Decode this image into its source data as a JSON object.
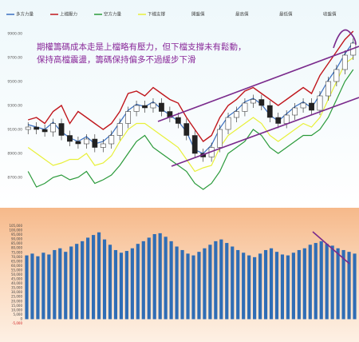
{
  "chart_data": [
    {
      "type": "candlestick",
      "annotations": [
        "期權籌碼成本走是上檔略有壓力，但下檔支撐未有鬆動，",
        "保持高檔震盪，籌碼保持偏多不過緩步下滑"
      ],
      "series": [
        {
          "name": "多方力量",
          "color": "#3a6fc0",
          "values": [
            9140,
            9120,
            9100,
            9160,
            9080,
            9030,
            9000,
            9040,
            8980,
            9000,
            9060,
            9160,
            9260,
            9310,
            9290,
            9330,
            9270,
            9220,
            9170,
            9080,
            8930,
            8900,
            8970,
            9110,
            9210,
            9260,
            9330,
            9360,
            9310,
            9220,
            9170,
            9230,
            9290,
            9330,
            9280,
            9390,
            9510,
            9610,
            9730,
            9830
          ]
        },
        {
          "name": "上檔壓力",
          "color": "#c0161c",
          "values": [
            9180,
            9200,
            9150,
            9250,
            9300,
            9150,
            9250,
            9200,
            9150,
            9100,
            9150,
            9250,
            9400,
            9420,
            9380,
            9450,
            9400,
            9350,
            9320,
            9200,
            9100,
            9000,
            9050,
            9200,
            9300,
            9350,
            9420,
            9450,
            9400,
            9350,
            9300,
            9350,
            9400,
            9450,
            9400,
            9550,
            9650,
            9750,
            9850,
            9920
          ]
        },
        {
          "name": "空方力量",
          "color": "#2a9a3a",
          "values": [
            8750,
            8620,
            8650,
            8700,
            8720,
            8680,
            8700,
            8750,
            8650,
            8680,
            8720,
            8800,
            8900,
            9000,
            9050,
            8950,
            8900,
            8850,
            8800,
            8750,
            8650,
            8600,
            8650,
            8750,
            8900,
            8950,
            9000,
            9100,
            9050,
            8950,
            8900,
            8950,
            9000,
            9050,
            9050,
            9100,
            9200,
            9350,
            9500,
            9600
          ]
        },
        {
          "name": "下檔支撐",
          "color": "#e8f03a",
          "values": [
            8950,
            8900,
            8850,
            8800,
            8820,
            8850,
            8850,
            8900,
            8800,
            8820,
            8880,
            9000,
            9100,
            9150,
            9150,
            9100,
            9050,
            9000,
            8950,
            8850,
            8750,
            8780,
            8800,
            8950,
            9050,
            9100,
            9150,
            9200,
            9150,
            9050,
            9000,
            9050,
            9100,
            9150,
            9120,
            9200,
            9350,
            9500,
            9650,
            9700
          ]
        }
      ],
      "ohlc": [
        {
          "name": "開盤價",
          "values": [
            9100,
            9120,
            9100,
            9080,
            9150,
            9050,
            9000,
            8980,
            9020,
            8950,
            8980,
            9050,
            9150,
            9250,
            9300,
            9280,
            9320,
            9250,
            9200,
            9150,
            9050,
            8900,
            8870,
            8950,
            9100,
            9200,
            9250,
            9320,
            9350,
            9300,
            9200,
            9150,
            9220,
            9280,
            9320,
            9260,
            9380,
            9500,
            9600,
            9720
          ]
        },
        {
          "name": "最高價",
          "values": [
            9160,
            9160,
            9140,
            9190,
            9190,
            9090,
            9040,
            9060,
            9060,
            9020,
            9090,
            9190,
            9290,
            9340,
            9340,
            9360,
            9360,
            9290,
            9240,
            9190,
            9090,
            8940,
            8990,
            9140,
            9240,
            9290,
            9360,
            9390,
            9390,
            9340,
            9240,
            9260,
            9320,
            9360,
            9360,
            9420,
            9540,
            9640,
            9760,
            9860
          ]
        },
        {
          "name": "最低價",
          "values": [
            9060,
            9060,
            9040,
            9040,
            9010,
            8960,
            8940,
            8940,
            8910,
            8910,
            8940,
            9010,
            9110,
            9210,
            9240,
            9240,
            9210,
            9160,
            9110,
            9010,
            8860,
            8830,
            8830,
            8910,
            9060,
            9160,
            9210,
            9280,
            9260,
            9160,
            9110,
            9110,
            9180,
            9240,
            9220,
            9220,
            9340,
            9460,
            9560,
            9680
          ]
        },
        {
          "name": "收盤價",
          "values": [
            9120,
            9100,
            9080,
            9150,
            9050,
            9000,
            8980,
            9020,
            8950,
            8980,
            9050,
            9150,
            9250,
            9300,
            9280,
            9320,
            9250,
            9200,
            9150,
            9050,
            8900,
            8870,
            8950,
            9100,
            9200,
            9250,
            9320,
            9350,
            9300,
            9200,
            9150,
            9220,
            9280,
            9320,
            9260,
            9380,
            9500,
            9600,
            9720,
            9820
          ]
        }
      ],
      "ylim": [
        8500,
        9980
      ],
      "yticks": [
        {
          "value": 9900,
          "label": "9900.00"
        },
        {
          "value": 9700,
          "label": "9700.00"
        },
        {
          "value": 9500,
          "label": "9500.00"
        },
        {
          "value": 9300,
          "label": "9300.00"
        },
        {
          "value": 9100,
          "label": "9100.00"
        },
        {
          "value": 8900,
          "label": "8900.00"
        },
        {
          "value": 8700,
          "label": "8700.00"
        }
      ]
    },
    {
      "type": "bar",
      "color": "#2f6db5",
      "values": [
        72000,
        74000,
        71000,
        75000,
        73000,
        78000,
        80000,
        76000,
        82000,
        85000,
        88000,
        92000,
        95000,
        98000,
        90000,
        84000,
        78000,
        75000,
        77000,
        80000,
        85000,
        88000,
        92000,
        96000,
        97000,
        93000,
        88000,
        82000,
        78000,
        74000,
        72000,
        76000,
        80000,
        84000,
        88000,
        90000,
        86000,
        82000,
        78000,
        75000,
        72000,
        70000,
        74000,
        78000,
        80000,
        76000,
        73000,
        72000,
        75000,
        78000,
        80000,
        84000,
        86000,
        88000,
        85000,
        83000,
        80000,
        78000,
        76000,
        74000
      ],
      "ylim": [
        -5000,
        105000
      ],
      "yticks": [
        {
          "value": 105000,
          "label": "105,000"
        },
        {
          "value": 100000,
          "label": "100,000"
        },
        {
          "value": 95000,
          "label": "95,000"
        },
        {
          "value": 90000,
          "label": "90,000"
        },
        {
          "value": 85000,
          "label": "85,000"
        },
        {
          "value": 80000,
          "label": "80,000"
        },
        {
          "value": 75000,
          "label": "75,000"
        },
        {
          "value": 70000,
          "label": "70,000"
        },
        {
          "value": 65000,
          "label": "65,000"
        },
        {
          "value": 60000,
          "label": "60,000"
        },
        {
          "value": 55000,
          "label": "55,000"
        },
        {
          "value": 50000,
          "label": "50,000"
        },
        {
          "value": 45000,
          "label": "45,000"
        },
        {
          "value": 40000,
          "label": "40,000"
        },
        {
          "value": 35000,
          "label": "35,000"
        },
        {
          "value": 30000,
          "label": "30,000"
        },
        {
          "value": 25000,
          "label": "25,000"
        },
        {
          "value": 20000,
          "label": "20,000"
        },
        {
          "value": 15000,
          "label": "15,000"
        },
        {
          "value": 10000,
          "label": "10,000"
        },
        {
          "value": 5000,
          "label": "5,000"
        },
        {
          "value": 0,
          "label": "0"
        },
        {
          "value": -5000,
          "label": "-5,000"
        }
      ]
    }
  ]
}
